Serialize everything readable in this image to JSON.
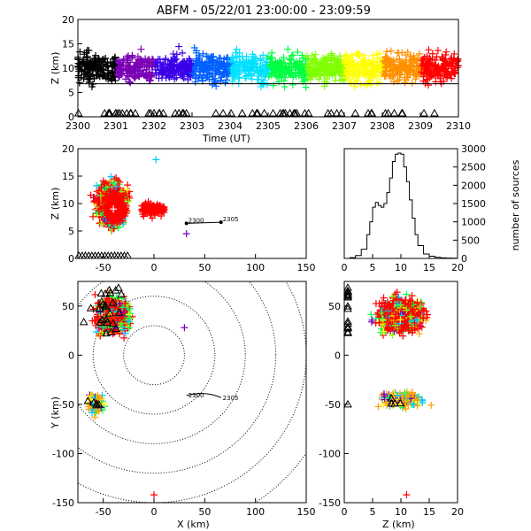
{
  "title": "ABFM - 05/22/01 23:00:00 - 23:09:59",
  "chart_data": [
    {
      "type": "scatter",
      "panel": "time-height",
      "xlabel": "Time (UT)",
      "ylabel": "Z (km)",
      "xlim": [
        2300,
        2310
      ],
      "ylim": [
        0,
        20
      ],
      "x_ticks": [
        "2300",
        "2301",
        "2302",
        "2303",
        "2304",
        "2305",
        "2306",
        "2307",
        "2308",
        "2309",
        "2310"
      ],
      "y_ticks": [
        "0",
        "5",
        "10",
        "15",
        "20"
      ],
      "color_by": "time",
      "color_scale": [
        "#000000",
        "#7a00b4",
        "#3a00e8",
        "#0060ff",
        "#00e0ff",
        "#00ff40",
        "#80ff00",
        "#ffff00",
        "#ff9000",
        "#ff0000"
      ],
      "reference_line_z": 6.8,
      "source_height_band": [
        2,
        19
      ],
      "station_markers": "triangles along Z = 0"
    },
    {
      "type": "scatter",
      "panel": "x-z",
      "xlabel": "",
      "ylabel": "Z (km)",
      "xlim": [
        -75,
        150
      ],
      "ylim": [
        0,
        20
      ],
      "x_ticks": [
        "-50",
        "0",
        "50",
        "100",
        "150"
      ],
      "y_ticks": [
        "0",
        "5",
        "10",
        "15",
        "20"
      ],
      "clusters": [
        {
          "x_range": [
            -75,
            -10
          ],
          "z_range": [
            0,
            20
          ],
          "dominant_color": "#ff0000"
        },
        {
          "x_range": [
            -15,
            12
          ],
          "z_range": [
            7,
            11
          ],
          "dominant_color": "#ff0000"
        }
      ],
      "track": {
        "x": [
          32,
          66
        ],
        "z": [
          6.4,
          6.6
        ],
        "start_label": "2300",
        "end_label": "2305"
      },
      "isolated_points": [
        {
          "x": 32,
          "z": 4.5,
          "color": "#7000c0"
        }
      ]
    },
    {
      "type": "line",
      "panel": "height-histogram",
      "xlabel": "",
      "ylabel": "number of sources",
      "xlim": [
        0,
        20
      ],
      "ylim": [
        0,
        3000
      ],
      "x_ticks": [
        "0",
        "5",
        "10",
        "15",
        "20"
      ],
      "y_ticks": [
        "0",
        "500",
        "1000",
        "1500",
        "2000",
        "2500",
        "3000"
      ],
      "x": [
        0,
        1,
        2,
        3,
        4,
        4.5,
        5,
        5.5,
        6,
        6.5,
        7,
        7.5,
        8,
        8.5,
        9,
        9.5,
        10,
        10.5,
        11,
        11.5,
        12,
        12.5,
        13,
        14,
        15,
        16,
        17,
        18,
        19,
        20
      ],
      "values": [
        0,
        20,
        80,
        250,
        650,
        1000,
        1400,
        1530,
        1450,
        1400,
        1500,
        1800,
        2200,
        2650,
        2850,
        2880,
        2850,
        2500,
        2100,
        1600,
        1100,
        650,
        350,
        120,
        60,
        30,
        15,
        10,
        5,
        0
      ]
    },
    {
      "type": "scatter",
      "panel": "plan-view",
      "xlabel": "X (km)",
      "ylabel": "Y (km)",
      "xlim": [
        -75,
        150
      ],
      "ylim": [
        -150,
        75
      ],
      "x_ticks": [
        "-50",
        "0",
        "50",
        "100",
        "150"
      ],
      "y_ticks": [
        "-150",
        "-100",
        "-50",
        "0",
        "50"
      ],
      "range_rings_km": [
        30,
        60,
        90,
        120,
        150,
        180
      ],
      "range_ring_center": [
        0,
        0
      ],
      "clusters": [
        {
          "x_range": [
            -75,
            5
          ],
          "y_range": [
            10,
            75
          ],
          "dominant_color": "#ff0000"
        },
        {
          "x_range": [
            -70,
            -45
          ],
          "y_range": [
            -70,
            -30
          ],
          "dominant_color": "#ffa000"
        }
      ],
      "track": {
        "x": [
          32,
          66
        ],
        "y": [
          -41,
          -43
        ],
        "start_label": "2300",
        "end_label": "2305"
      },
      "isolated_points": [
        {
          "x": 0,
          "y": -142,
          "color": "#ff0000"
        },
        {
          "x": 30,
          "y": 28,
          "color": "#7000c0"
        }
      ]
    },
    {
      "type": "scatter",
      "panel": "z-y",
      "xlabel": "Z (km)",
      "ylabel": "",
      "xlim": [
        0,
        20
      ],
      "ylim": [
        -150,
        75
      ],
      "x_ticks": [
        "0",
        "5",
        "10",
        "15",
        "20"
      ],
      "y_ticks": [
        "-150",
        "-100",
        "-50",
        "0",
        "50"
      ],
      "clusters": [
        {
          "z_range": [
            2,
            20
          ],
          "y_range": [
            10,
            75
          ],
          "dominant_color": "#ff0000"
        },
        {
          "z_range": [
            5,
            17
          ],
          "y_range": [
            -65,
            -32
          ],
          "dominant_color": "#ffa000"
        }
      ],
      "isolated_points": [
        {
          "z": 11,
          "y": -142,
          "color": "#ff0000"
        }
      ]
    }
  ]
}
